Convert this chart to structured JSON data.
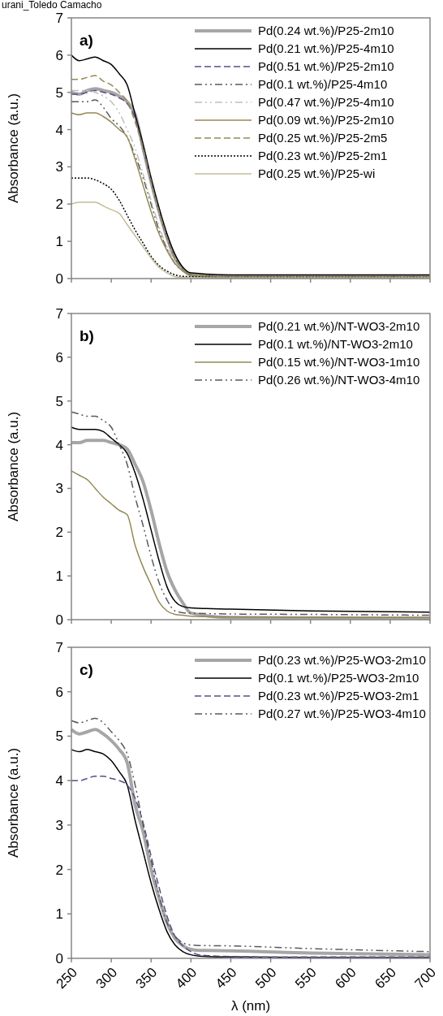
{
  "chart_data": [
    {
      "type": "line",
      "title": "a)",
      "annotations": [
        "urani_Toledo Camacho"
      ],
      "ylabel": "Absorbance (a.u.)",
      "xlim": [
        250,
        700
      ],
      "xticks": [
        250,
        300,
        350,
        400,
        450,
        500,
        550,
        600,
        650,
        700
      ],
      "ylim": [
        0,
        7
      ],
      "yticks": [
        0,
        1,
        2,
        3,
        4,
        5,
        6,
        7
      ],
      "tick_labels": "y",
      "grid": false,
      "legend": "top right",
      "marker": "none",
      "x": [
        250,
        260,
        270,
        280,
        290,
        300,
        310,
        320,
        330,
        340,
        350,
        360,
        370,
        380,
        390,
        400,
        450,
        550,
        700
      ],
      "series": [
        {
          "name": "Pd(0.24 wt.%)/P25-2m10",
          "color": "#a6a6a6",
          "line_style": "solid",
          "values": [
            5.0,
            4.95,
            5.05,
            5.1,
            5.05,
            5.0,
            4.9,
            4.75,
            4.4,
            3.5,
            2.6,
            1.8,
            1.1,
            0.55,
            0.25,
            0.1,
            0.05,
            0.05,
            0.05
          ]
        },
        {
          "name": "Pd(0.21 wt.%)/P25-4m10",
          "color": "#000000",
          "line_style": "solid",
          "values": [
            6.0,
            5.85,
            5.9,
            5.95,
            5.85,
            5.75,
            5.5,
            5.2,
            4.4,
            3.6,
            2.7,
            1.9,
            1.2,
            0.65,
            0.3,
            0.15,
            0.1,
            0.1,
            0.1
          ]
        },
        {
          "name": "Pd(0.51 wt.%)/P25-2m10",
          "color": "#5f4b8b",
          "line_style": "dashed",
          "values": [
            4.95,
            4.95,
            5.0,
            5.05,
            5.0,
            4.95,
            4.85,
            4.7,
            4.3,
            3.5,
            2.6,
            1.8,
            1.1,
            0.55,
            0.25,
            0.1,
            0.05,
            0.05,
            0.05
          ]
        },
        {
          "name": "Pd(0.1 wt.%)/P25-4m10",
          "color": "#595959",
          "line_style": "dashdot",
          "values": [
            4.75,
            4.75,
            4.75,
            4.8,
            4.6,
            4.3,
            4.1,
            3.8,
            3.3,
            2.7,
            2.0,
            1.3,
            0.8,
            0.4,
            0.2,
            0.1,
            0.05,
            0.05,
            0.05
          ]
        },
        {
          "name": "Pd(0.47 wt.%)/P25-4m10",
          "color": "#bfbfbf",
          "line_style": "dashdot",
          "values": [
            5.05,
            5.05,
            5.05,
            5.0,
            4.9,
            4.75,
            4.45,
            4.0,
            3.5,
            2.8,
            2.1,
            1.4,
            0.85,
            0.45,
            0.2,
            0.08,
            0.04,
            0.04,
            0.04
          ]
        },
        {
          "name": "Pd(0.09 wt.%)/P25-2m10",
          "color": "#948a54",
          "line_style": "solid",
          "values": [
            4.45,
            4.4,
            4.45,
            4.45,
            4.35,
            4.2,
            4.0,
            3.8,
            3.2,
            2.5,
            1.8,
            1.2,
            0.75,
            0.4,
            0.2,
            0.08,
            0.03,
            0.03,
            0.03
          ]
        },
        {
          "name": "Pd(0.25 wt.%)/P25-2m5",
          "color": "#948a54",
          "line_style": "dashed",
          "values": [
            5.35,
            5.35,
            5.4,
            5.45,
            5.3,
            5.2,
            5.0,
            4.75,
            4.2,
            3.5,
            2.6,
            1.8,
            1.1,
            0.55,
            0.25,
            0.1,
            0.05,
            0.05,
            0.05
          ]
        },
        {
          "name": "Pd(0.23 wt.%)/P25-2m1",
          "color": "#000000",
          "line_style": "dotted",
          "values": [
            2.7,
            2.7,
            2.7,
            2.65,
            2.55,
            2.4,
            2.1,
            1.7,
            1.3,
            0.95,
            0.6,
            0.35,
            0.2,
            0.1,
            0.06,
            0.05,
            0.03,
            0.03,
            0.03
          ]
        },
        {
          "name": "Pd(0.25 wt.%)/P25-wi",
          "color": "#c4bd97",
          "line_style": "solid",
          "values": [
            2.0,
            2.05,
            2.05,
            2.05,
            1.95,
            1.85,
            1.75,
            1.45,
            1.15,
            0.85,
            0.55,
            0.3,
            0.15,
            0.05,
            0.03,
            0.02,
            0.02,
            0.02,
            0.02
          ]
        }
      ]
    },
    {
      "type": "line",
      "title": "b)",
      "ylabel": "Absorbance (a.u.)",
      "xlim": [
        250,
        700
      ],
      "xticks": [
        250,
        300,
        350,
        400,
        450,
        500,
        550,
        600,
        650,
        700
      ],
      "ylim": [
        0,
        7
      ],
      "yticks": [
        0,
        1,
        2,
        3,
        4,
        5,
        6,
        7
      ],
      "tick_labels": "y",
      "grid": false,
      "legend": "top right",
      "marker": "none",
      "x": [
        250,
        260,
        270,
        280,
        290,
        300,
        310,
        320,
        330,
        340,
        350,
        360,
        370,
        380,
        390,
        400,
        450,
        550,
        700
      ],
      "series": [
        {
          "name": "Pd(0.21 wt.%)/NT-WO3-2m10",
          "color": "#a6a6a6",
          "line_style": "solid",
          "values": [
            4.05,
            4.05,
            4.1,
            4.1,
            4.1,
            4.05,
            4.0,
            3.9,
            3.55,
            3.15,
            2.5,
            1.75,
            1.1,
            0.68,
            0.38,
            0.15,
            0.05,
            0.04,
            0.03
          ]
        },
        {
          "name": "Pd(0.1 wt.%)/NT-WO3-2m10",
          "color": "#000000",
          "line_style": "solid",
          "values": [
            4.4,
            4.35,
            4.35,
            4.35,
            4.3,
            4.15,
            4.0,
            3.8,
            3.35,
            2.75,
            2.05,
            1.35,
            0.75,
            0.42,
            0.3,
            0.27,
            0.24,
            0.2,
            0.17
          ]
        },
        {
          "name": "Pd(0.15 wt.%)/NT-WO3-1m10",
          "color": "#948a54",
          "line_style": "solid",
          "values": [
            3.4,
            3.3,
            3.2,
            3.0,
            2.8,
            2.65,
            2.5,
            2.4,
            1.7,
            1.2,
            0.8,
            0.4,
            0.2,
            0.12,
            0.1,
            0.08,
            0.06,
            0.05,
            0.05
          ]
        },
        {
          "name": "Pd(0.26 wt.%)/NT-WO3-4m10",
          "color": "#595959",
          "line_style": "dashdot",
          "values": [
            4.75,
            4.7,
            4.65,
            4.65,
            4.55,
            4.4,
            4.0,
            3.55,
            2.8,
            2.15,
            1.45,
            0.85,
            0.45,
            0.2,
            0.16,
            0.15,
            0.13,
            0.12,
            0.1
          ]
        }
      ]
    },
    {
      "type": "line",
      "title": "c)",
      "xlabel": "λ (nm)",
      "ylabel": "Absorbance (a.u.)",
      "xlim": [
        250,
        700
      ],
      "xticks": [
        250,
        300,
        350,
        400,
        450,
        500,
        550,
        600,
        650,
        700
      ],
      "ylim": [
        0,
        7
      ],
      "yticks": [
        0,
        1,
        2,
        3,
        4,
        5,
        6,
        7
      ],
      "grid": false,
      "legend": "top right",
      "marker": "none",
      "x": [
        250,
        260,
        270,
        280,
        290,
        300,
        310,
        320,
        330,
        340,
        350,
        360,
        370,
        380,
        390,
        400,
        410,
        450,
        550,
        700
      ],
      "series": [
        {
          "name": "Pd(0.23 wt.%)/P25-WO3-2m10",
          "color": "#a6a6a6",
          "line_style": "solid",
          "values": [
            5.15,
            5.05,
            5.1,
            5.15,
            5.05,
            4.9,
            4.7,
            4.4,
            3.45,
            2.85,
            2.0,
            1.35,
            0.8,
            0.45,
            0.28,
            0.2,
            0.18,
            0.17,
            0.12,
            0.08
          ]
        },
        {
          "name": "Pd(0.1 wt.%)/P25-WO3-2m10",
          "color": "#000000",
          "line_style": "solid",
          "values": [
            4.7,
            4.65,
            4.7,
            4.65,
            4.6,
            4.45,
            4.2,
            3.9,
            3.1,
            2.4,
            1.7,
            1.1,
            0.6,
            0.3,
            0.15,
            0.08,
            0.05,
            0.03,
            0.02,
            0.02
          ]
        },
        {
          "name": "Pd(0.23 wt.%)/P25-WO3-2m1",
          "color": "#5f4b8b",
          "line_style": "dashed",
          "values": [
            4.0,
            4.0,
            4.05,
            4.1,
            4.1,
            4.05,
            4.0,
            3.9,
            3.6,
            3.05,
            2.3,
            1.6,
            0.95,
            0.5,
            0.28,
            0.15,
            0.08,
            0.04,
            0.03,
            0.03
          ]
        },
        {
          "name": "Pd(0.27 wt.%)/P25-WO3-4m10",
          "color": "#595959",
          "line_style": "dashdot",
          "values": [
            5.35,
            5.3,
            5.35,
            5.4,
            5.3,
            5.1,
            4.9,
            4.6,
            3.9,
            3.0,
            2.2,
            1.4,
            0.8,
            0.5,
            0.35,
            0.3,
            0.29,
            0.28,
            0.22,
            0.15
          ]
        }
      ]
    }
  ]
}
